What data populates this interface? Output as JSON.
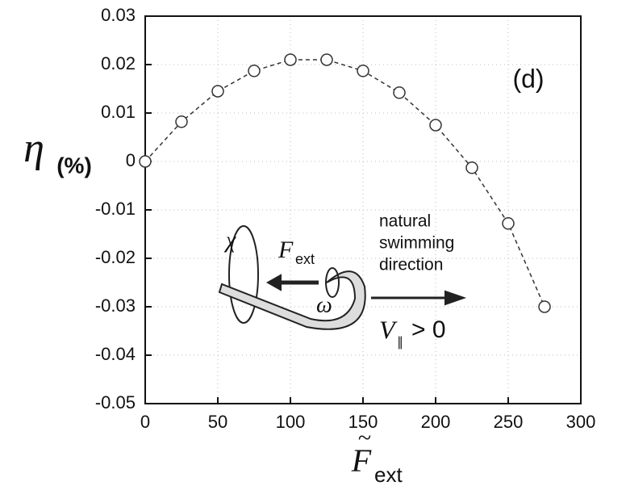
{
  "chart_data": {
    "type": "scatter",
    "x_label": {
      "symbol": "F",
      "accent": "~",
      "subscript": "ext"
    },
    "y_label": {
      "symbol": "η",
      "unit": "(%)"
    },
    "panel_label": "(d)",
    "inset": {
      "chi": "χ",
      "force": "F",
      "force_subscript": "ext",
      "omega": "ω",
      "direction": [
        "natural",
        "swimming",
        "direction"
      ],
      "velocity": "V",
      "velocity_subscript": "∥",
      "velocity_relation": "> 0"
    },
    "x": [
      0,
      25,
      50,
      75,
      100,
      125,
      150,
      175,
      200,
      225,
      250,
      275
    ],
    "series": [
      {
        "color": "#333333",
        "values": [
          0,
          0.0082,
          0.0145,
          0.0187,
          0.021,
          0.021,
          0.0187,
          0.0142,
          0.0075,
          -0.0013,
          -0.0128,
          -0.03
        ]
      }
    ],
    "xlim": [
      0,
      300
    ],
    "xticks": [
      0,
      50,
      100,
      150,
      200,
      250,
      300
    ],
    "ylim": [
      -0.05,
      0.03
    ],
    "yticks": [
      -0.05,
      -0.04,
      -0.03,
      -0.02,
      -0.01,
      0,
      0.01,
      0.02,
      0.03
    ],
    "grid": true
  }
}
